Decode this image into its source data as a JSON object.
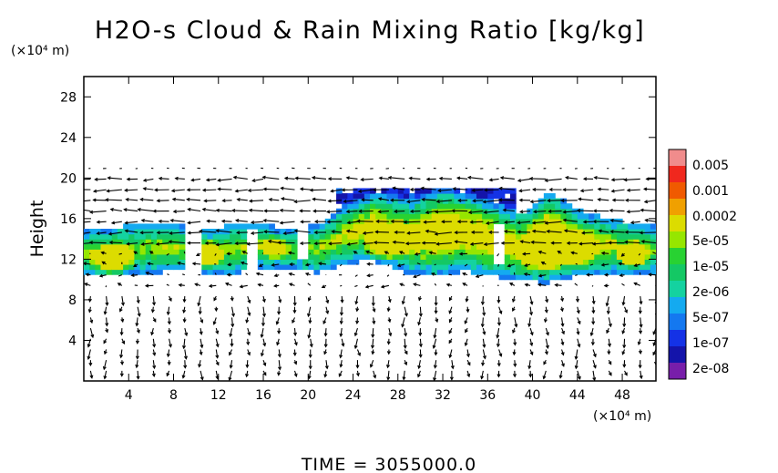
{
  "chart_data": {
    "type": "heatmap",
    "title": "H2O-s Cloud & Rain Mixing Ratio [kg/kg]",
    "ylabel": "Height",
    "y_unit_label": "(×10⁴ m)",
    "x_unit_label": "(×10⁴ m)",
    "xlim": [
      0,
      51
    ],
    "ylim": [
      0,
      30
    ],
    "x_ticks": [
      "4",
      "8",
      "12",
      "16",
      "20",
      "24",
      "28",
      "32",
      "36",
      "40",
      "44",
      "48"
    ],
    "y_ticks": [
      "4",
      "8",
      "12",
      "16",
      "20",
      "24",
      "28"
    ],
    "colorbar": {
      "labels": [
        "0.005",
        "0.001",
        "0.0002",
        "5e-05",
        "1e-05",
        "2e-06",
        "5e-07",
        "1e-07",
        "2e-08"
      ],
      "colors": [
        "#f08c8c",
        "#f0281e",
        "#f05a00",
        "#f0a000",
        "#dcdc00",
        "#96e600",
        "#28d232",
        "#14c864",
        "#14d2a0",
        "#14aaf0",
        "#1478f0",
        "#1432e6",
        "#1414aa",
        "#781eaa"
      ]
    },
    "vectors": "wind vector field drawn as arrows across the domain",
    "time_label": "TIME = 3055000.0"
  }
}
